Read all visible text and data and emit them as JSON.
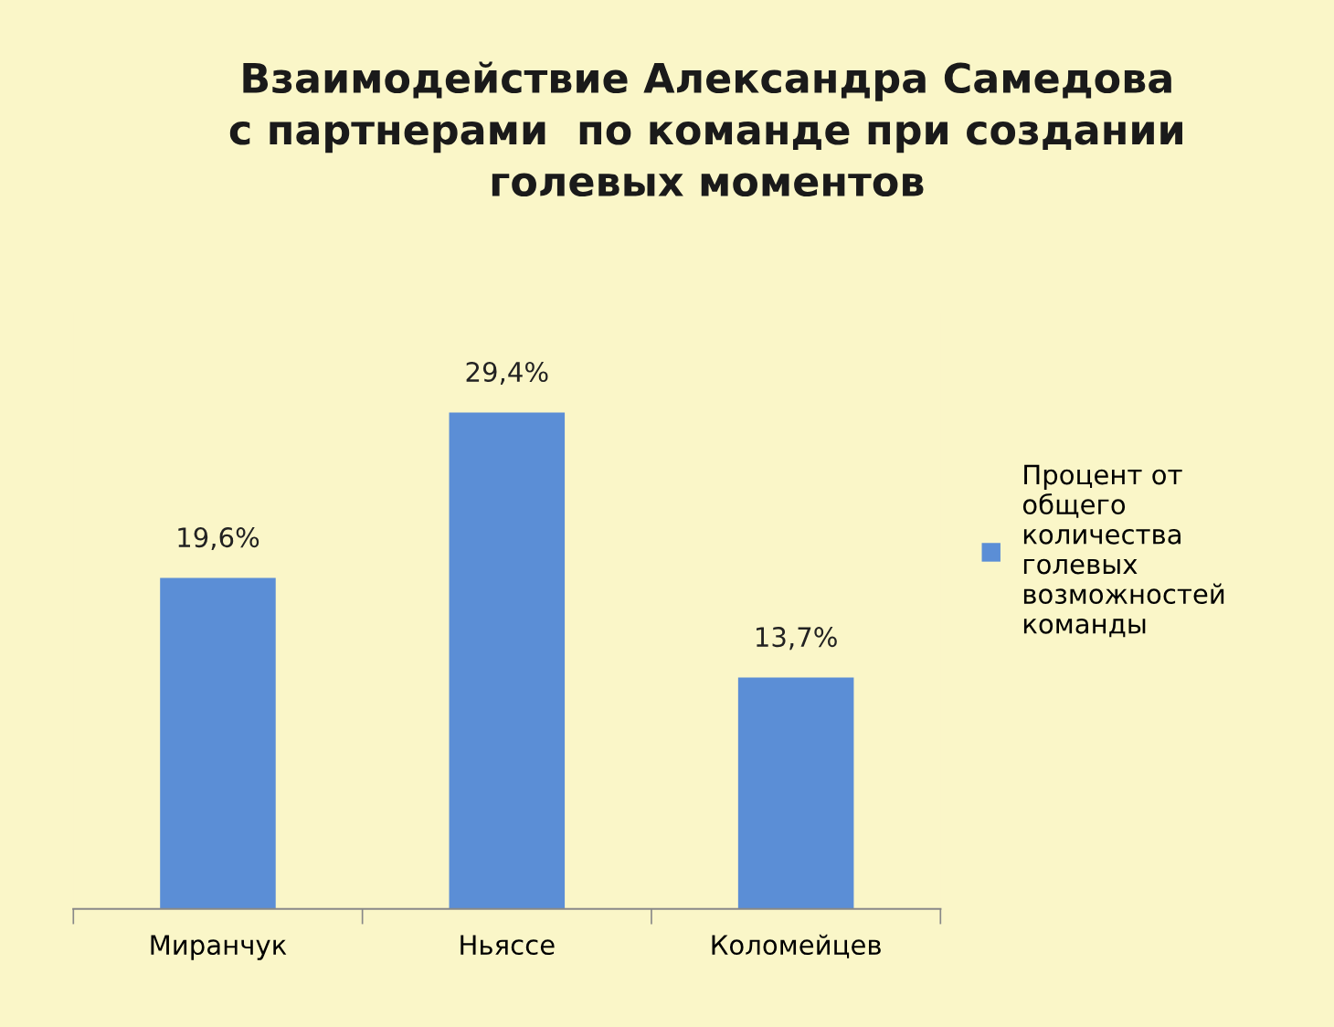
{
  "chart_data": {
    "type": "bar",
    "title": "Взаимодействие Александра Самедова\nс партнерами  по команде при создании\nголевых моментов",
    "categories": [
      "Миранчук",
      "Ньяссе",
      "Коломейцев"
    ],
    "series": [
      {
        "name": "Процент от\nобщего\nколичества\nголевых\nвозможностей\nкоманды",
        "color": "#5b8ed6",
        "values": [
          19.6,
          29.4,
          13.7
        ],
        "value_labels": [
          "19,6%",
          "29,4%",
          "13,7%"
        ]
      }
    ],
    "legend": "right",
    "tick_labels": "x"
  }
}
